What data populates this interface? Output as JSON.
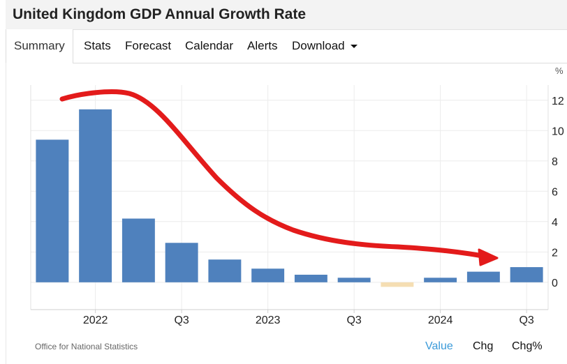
{
  "title": "United Kingdom GDP Annual Growth Rate",
  "tabs": {
    "summary": "Summary",
    "stats": "Stats",
    "forecast": "Forecast",
    "calendar": "Calendar",
    "alerts": "Alerts",
    "download": "Download"
  },
  "footer": {
    "source": "Office for National Statistics",
    "value": "Value",
    "chg": "Chg",
    "chgpct": "Chg%"
  },
  "colors": {
    "bar": "#4f81bd",
    "negative_bar": "#f5deb3",
    "annotation": "#e31b1b",
    "active_link": "#3a9ad9"
  },
  "chart_data": {
    "type": "bar",
    "unit": "%",
    "categories": [
      "2021 Q4",
      "2022 Q1",
      "2022 Q2",
      "2022 Q3",
      "2022 Q4",
      "2023 Q1",
      "2023 Q2",
      "2023 Q3",
      "2023 Q4",
      "2024 Q1",
      "2024 Q2",
      "2024 Q3"
    ],
    "values": [
      9.4,
      11.4,
      4.2,
      2.6,
      1.5,
      0.9,
      0.5,
      0.3,
      -0.3,
      0.3,
      0.7,
      1.0
    ],
    "x_tick_labels": [
      {
        "label": "2022",
        "category": "2022 Q1"
      },
      {
        "label": "Q3",
        "category": "2022 Q3"
      },
      {
        "label": "2023",
        "category": "2023 Q1"
      },
      {
        "label": "Q3",
        "category": "2023 Q3"
      },
      {
        "label": "2024",
        "category": "2024 Q1"
      },
      {
        "label": "Q3",
        "category": "2024 Q3"
      }
    ],
    "y_ticks": [
      0,
      2,
      4,
      6,
      8,
      10,
      12
    ],
    "ylim": [
      -1.8,
      13
    ],
    "y_axis_side": "right",
    "grid": true,
    "annotation": "hand-drawn red arrow trending downward from 2022 to 2024"
  }
}
